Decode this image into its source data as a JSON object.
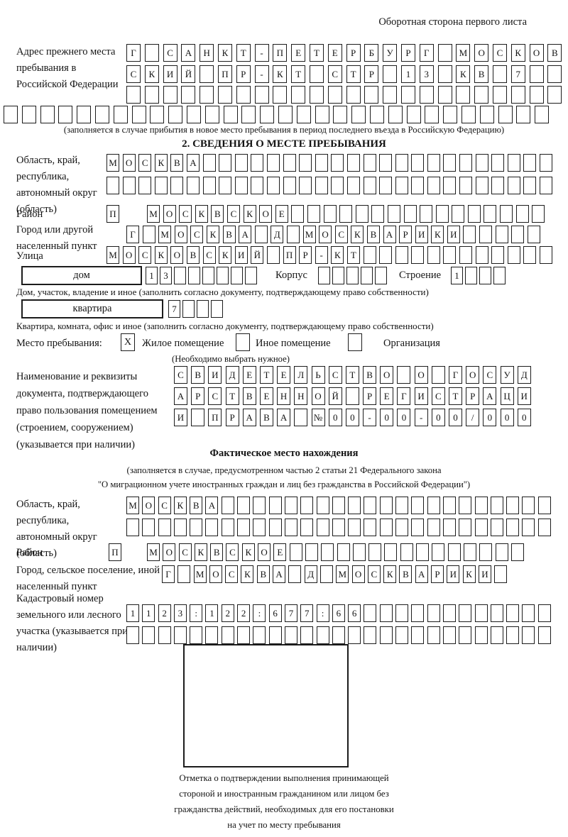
{
  "page": {
    "header_note": "Оборотная сторона первого листа"
  },
  "prev_address": {
    "label": "Адрес прежнего места пребывания в Российской Федерации",
    "row1": "Г САНКТ-ПЕТЕРБУРГ МОСКОВ",
    "row2": "СКИЙ ПР-КТ СТР 13 КВ 7",
    "row3": "",
    "row4": "",
    "note": "(заполняется в случае прибытия в новое место пребывания в период последнего въезда в Российскую Федерацию)"
  },
  "section2": {
    "title": "2. СВЕДЕНИЯ О МЕСТЕ ПРЕБЫВАНИЯ",
    "region_label": "Область, край, республика, автономный округ (область)",
    "region_row1": "МОСКВА",
    "region_row2": "",
    "district_label": "Район",
    "district_first": "П",
    "district_rest": "МОСКВСКОЕ",
    "city_label": "Город или другой населенный пункт",
    "city_row": "Г МОСКВА Д МОСКВАРИКИ",
    "street_label": "Улица",
    "street_row": "МОСКОВСКИЙ ПР-КТ",
    "house_box_label": "дом",
    "house_cells": "13",
    "korpus_label": "Корпус",
    "korpus_cells": "",
    "stroenie_label": "Строение",
    "stroenie_cells": "1",
    "house_note": "Дом, участок, владение и иное (заполнить согласно документу, подтверждающему право собственности)",
    "apartment_box_label": "квартира",
    "apartment_cells": "7",
    "apartment_note": "Квартира, комната, офис и иное (заполнить согласно документу, подтверждающему право собственности)",
    "stay_label": "Место пребывания:",
    "stay_opt1_mark": "X",
    "stay_opt1": "Жилое помещение",
    "stay_opt2_mark": "",
    "stay_opt2": "Иное помещение",
    "stay_opt3_mark": "",
    "stay_opt3": "Организация",
    "stay_note": "(Необходимо выбрать нужное)",
    "doc_label": "Наименование и реквизиты документа, подтверждающего право пользования помещением (строением, сооружением) (указывается при наличии)",
    "doc_row1": "СВИДЕТЕЛЬСТВО О ГОСУД",
    "doc_row2": "АРСТВЕННОЙ РЕГИСТРАЦИ",
    "doc_row3": "И ПРАВА №00-00-00/000"
  },
  "actual_location": {
    "title": "Фактическое место нахождения",
    "note_line1": "(заполняется в случае, предусмотренном частью 2 статьи 21 Федерального закона",
    "note_line2": "\"О миграционном учете иностранных граждан и лиц без гражданства в Российской Федерации\")",
    "region_label": "Область, край, республика, автономный округ (область)",
    "region_row1": "МОСКВА",
    "region_row2": "",
    "district_label": "Район",
    "district_first": "П",
    "district_rest": "МОСКВСКОЕ",
    "city_label": "Город, сельское поселение, иной населенный пункт",
    "city_row": "Г МОСКВА Д МОСКВАРИКИ",
    "cadastre_label": "Кадастровый номер земельного или лесного участка (указывается при наличии)",
    "cadastre_row1": "1123:122:677:66",
    "cadastre_row2": ""
  },
  "stamp": {
    "caption": "Отметка о подтверждении выполнения принимающей стороной и иностранным гражданином или лицом без гражданства действий, необходимых для его постановки на учет по месту пребывания"
  }
}
